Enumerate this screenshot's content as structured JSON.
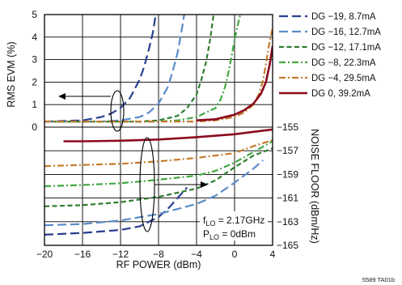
{
  "chart_data": {
    "type": "line",
    "grid": true,
    "legend_placement": "right",
    "x_axis": {
      "label": "RF POWER (dBm)",
      "range": [
        -20,
        4
      ],
      "ticks": [
        "-20",
        "-16",
        "-12",
        "-8",
        "-4",
        "0",
        "4"
      ],
      "tick_values": [
        -20,
        -16,
        -12,
        -8,
        -4,
        0,
        4
      ]
    },
    "y_left": {
      "label": "RMS EVM (%)",
      "range": [
        0,
        5
      ],
      "ticks": [
        "0",
        "1",
        "2",
        "3",
        "4",
        "5"
      ],
      "tick_values": [
        0,
        1,
        2,
        3,
        4,
        5
      ]
    },
    "y_right": {
      "label": "NOISE FLOOR (dBm/Hz)",
      "range": [
        -165,
        -155
      ],
      "ticks": [
        "-155",
        "-157",
        "-159",
        "-161",
        "-163",
        "-165"
      ],
      "tick_values": [
        -155,
        -157,
        -159,
        -161,
        -163,
        -165
      ]
    },
    "series": [
      {
        "name": "DG −19, 8.7mA",
        "color": "#2a3f8f",
        "dash": "long-dash",
        "evm": [
          [
            -20,
            0.25
          ],
          [
            -16,
            0.3
          ],
          [
            -14,
            0.45
          ],
          [
            -13,
            0.6
          ],
          [
            -12,
            0.85
          ],
          [
            -11,
            1.3
          ],
          [
            -10,
            2.1
          ],
          [
            -9.5,
            2.7
          ],
          [
            -9,
            3.5
          ],
          [
            -8.6,
            4.2
          ],
          [
            -8.3,
            5.0
          ]
        ],
        "noise": [
          [
            -20,
            -164.1
          ],
          [
            -16,
            -163.95
          ],
          [
            -12,
            -163.7
          ],
          [
            -10,
            -163.4
          ],
          [
            -8,
            -162.6
          ],
          [
            -7,
            -161.9
          ],
          [
            -6,
            -161.0
          ],
          [
            -5,
            -160.1
          ]
        ]
      },
      {
        "name": "DG −16, 12.7mA",
        "color": "#5a8cc8",
        "dash": "long-dash",
        "evm": [
          [
            -20,
            0.25
          ],
          [
            -14,
            0.25
          ],
          [
            -12,
            0.3
          ],
          [
            -10,
            0.45
          ],
          [
            -9,
            0.65
          ],
          [
            -8,
            1.05
          ],
          [
            -7,
            1.8
          ],
          [
            -6.5,
            2.5
          ],
          [
            -6,
            3.3
          ],
          [
            -5.6,
            4.2
          ],
          [
            -5.3,
            5.0
          ]
        ],
        "noise": [
          [
            -20,
            -163.3
          ],
          [
            -16,
            -163.2
          ],
          [
            -12,
            -162.9
          ],
          [
            -8,
            -162.35
          ],
          [
            -4,
            -161.5
          ],
          [
            -2,
            -160.8
          ],
          [
            0,
            -159.7
          ],
          [
            2,
            -158.5
          ],
          [
            3,
            -157.8
          ]
        ]
      },
      {
        "name": "DG −12, 17.1mA",
        "color": "#2e7d32",
        "dash": "short-dash",
        "evm": [
          [
            -20,
            0.25
          ],
          [
            -10,
            0.25
          ],
          [
            -8,
            0.3
          ],
          [
            -6,
            0.5
          ],
          [
            -5,
            0.85
          ],
          [
            -4,
            1.45
          ],
          [
            -3.5,
            2.1
          ],
          [
            -3,
            2.9
          ],
          [
            -2.6,
            3.8
          ],
          [
            -2.2,
            5.0
          ]
        ],
        "noise": [
          [
            -20,
            -161.7
          ],
          [
            -16,
            -161.6
          ],
          [
            -12,
            -161.35
          ],
          [
            -8,
            -160.9
          ],
          [
            -4,
            -160.2
          ],
          [
            -2,
            -159.5
          ],
          [
            0,
            -158.4
          ],
          [
            2,
            -157.4
          ],
          [
            4,
            -156.8
          ]
        ]
      },
      {
        "name": "DG −8, 22.3mA",
        "color": "#43a843",
        "dash": "dash-dot",
        "evm": [
          [
            -20,
            0.25
          ],
          [
            -8,
            0.25
          ],
          [
            -6,
            0.3
          ],
          [
            -4,
            0.45
          ],
          [
            -2,
            0.85
          ],
          [
            -1.5,
            1.2
          ],
          [
            -1,
            1.8
          ],
          [
            -0.6,
            2.5
          ],
          [
            -0.2,
            3.4
          ],
          [
            0.2,
            4.3
          ],
          [
            0.6,
            5.0
          ]
        ],
        "noise": [
          [
            -20,
            -160.0
          ],
          [
            -16,
            -159.9
          ],
          [
            -12,
            -159.75
          ],
          [
            -8,
            -159.45
          ],
          [
            -4,
            -159.1
          ],
          [
            -2,
            -158.7
          ],
          [
            0,
            -158.0
          ],
          [
            2,
            -157.1
          ],
          [
            4,
            -156.2
          ]
        ]
      },
      {
        "name": "DG −4, 29.5mA",
        "color": "#c57a2a",
        "dash": "dash-dot",
        "evm": [
          [
            -20,
            0.25
          ],
          [
            -4,
            0.25
          ],
          [
            -2,
            0.3
          ],
          [
            0,
            0.45
          ],
          [
            1,
            0.65
          ],
          [
            2,
            1.0
          ],
          [
            2.6,
            1.5
          ],
          [
            3,
            2.1
          ],
          [
            3.3,
            2.8
          ],
          [
            3.6,
            3.6
          ],
          [
            4,
            4.4
          ]
        ],
        "noise": [
          [
            -20,
            -158.3
          ],
          [
            -16,
            -158.2
          ],
          [
            -12,
            -158.1
          ],
          [
            -8,
            -157.9
          ],
          [
            -4,
            -157.6
          ],
          [
            0,
            -157.2
          ],
          [
            2,
            -156.6
          ],
          [
            4,
            -156.1
          ]
        ]
      },
      {
        "name": "DG 0, 39.2mA",
        "color": "#8b0a1e",
        "dash": "solid",
        "evm": [
          [
            -4,
            0.3
          ],
          [
            -2,
            0.35
          ],
          [
            0,
            0.55
          ],
          [
            1,
            0.75
          ],
          [
            2,
            1.05
          ],
          [
            2.8,
            1.5
          ],
          [
            3.3,
            2.0
          ],
          [
            3.7,
            2.8
          ],
          [
            4,
            3.6
          ]
        ],
        "noise": [
          [
            -18,
            -156.2
          ],
          [
            -16,
            -156.2
          ],
          [
            -12,
            -156.15
          ],
          [
            -8,
            -156.05
          ],
          [
            -4,
            -155.85
          ],
          [
            0,
            -155.6
          ],
          [
            2,
            -155.4
          ],
          [
            4,
            -155.2
          ]
        ]
      }
    ],
    "annotations": {
      "flo": "f",
      "flo_sub": "LO",
      "flo_val": " = 2.17GHz",
      "plo": "P",
      "plo_sub": "LO",
      "plo_val": " = 0dBm"
    }
  },
  "footnote": "5589 TA01b"
}
